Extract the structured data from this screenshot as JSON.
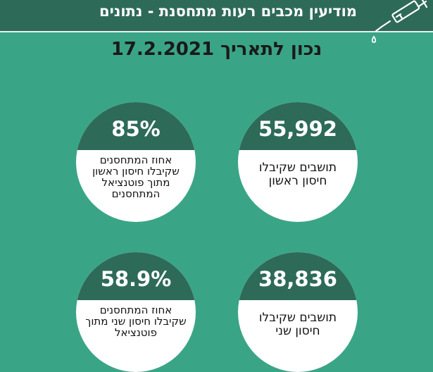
{
  "header": {
    "title": "מודיעין מכבים רעות מתחסנת - נתונים"
  },
  "date_line": "נכון לתאריך 17.2.2021",
  "stats": [
    {
      "value": "55,992",
      "label": "תושבים שקיבלו חיסון ראשון"
    },
    {
      "value": "85%",
      "label": "אחוז המתחסנים שקיבלו חיסון ראשון מתוך פוטנציאל המתחסנים"
    },
    {
      "value": "38,836",
      "label": "תושבים שקיבלו חיסון שני"
    },
    {
      "value": "58.9%",
      "label": "אחוז המתחסנים שקיבלו חיסון שני מתוך פוטנציאל"
    }
  ],
  "colors": {
    "background": "#3aa586",
    "header": "#2e6a58",
    "circle_cap": "#2e6a58",
    "circle_body": "#ffffff"
  },
  "icons": {
    "header_icon": "syringe-icon"
  }
}
